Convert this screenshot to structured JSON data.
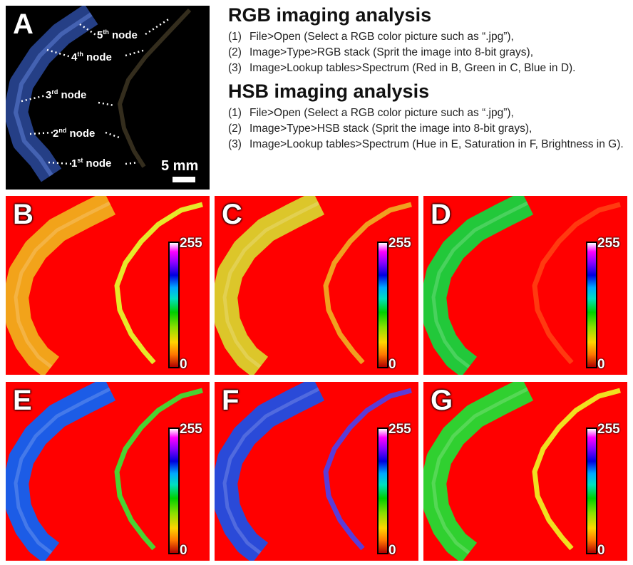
{
  "panel_a": {
    "label": "A",
    "nodes": [
      {
        "num": "5",
        "suffix": "th",
        "word": "node"
      },
      {
        "num": "4",
        "suffix": "th",
        "word": "node"
      },
      {
        "num": "3",
        "suffix": "rd",
        "word": "node"
      },
      {
        "num": "2",
        "suffix": "nd",
        "word": "node"
      },
      {
        "num": "1",
        "suffix": "st",
        "word": "node"
      }
    ],
    "scale_label": "5 mm"
  },
  "rgb_section": {
    "title": "RGB imaging analysis",
    "steps": [
      {
        "num": "(1)",
        "text": "File>Open (Select a RGB color picture such as “.jpg”),"
      },
      {
        "num": "(2)",
        "text": "Image>Type>RGB stack (Sprit the image into 8-bit grays),"
      },
      {
        "num": "(3)",
        "text": "Image>Lookup tables>Spectrum (Red in B, Green in C, Blue in D)."
      }
    ]
  },
  "hsb_section": {
    "title": "HSB imaging analysis",
    "steps": [
      {
        "num": "(1)",
        "text": "File>Open (Select a RGB color picture such as “.jpg”),"
      },
      {
        "num": "(2)",
        "text": "Image>Type>HSB stack (Sprit the image into 8-bit grays),"
      },
      {
        "num": "(3)",
        "text": "Image>Lookup tables>Spectrum (Hue in E, Saturation in F, Brightness in G)."
      }
    ]
  },
  "colorbar": {
    "max": "255",
    "min": "0"
  },
  "panels": [
    {
      "label": "B",
      "left_color": "#f2a31a",
      "right_color": "#e6e82a",
      "bg": "#ff0000"
    },
    {
      "label": "C",
      "left_color": "#dcc62a",
      "right_color": "#f0a020",
      "bg": "#ff0000"
    },
    {
      "label": "D",
      "left_color": "#22c83a",
      "right_color": "#ff3a10",
      "bg": "#ff0000"
    },
    {
      "label": "E",
      "left_color": "#1c5ce6",
      "right_color": "#4ad232",
      "bg": "#ff0000"
    },
    {
      "label": "F",
      "left_color": "#2a4ad8",
      "right_color": "#5a3cd8",
      "bg": "#ff0000"
    },
    {
      "label": "G",
      "left_color": "#30d030",
      "right_color": "#f0e020",
      "bg": "#ff0000"
    }
  ]
}
